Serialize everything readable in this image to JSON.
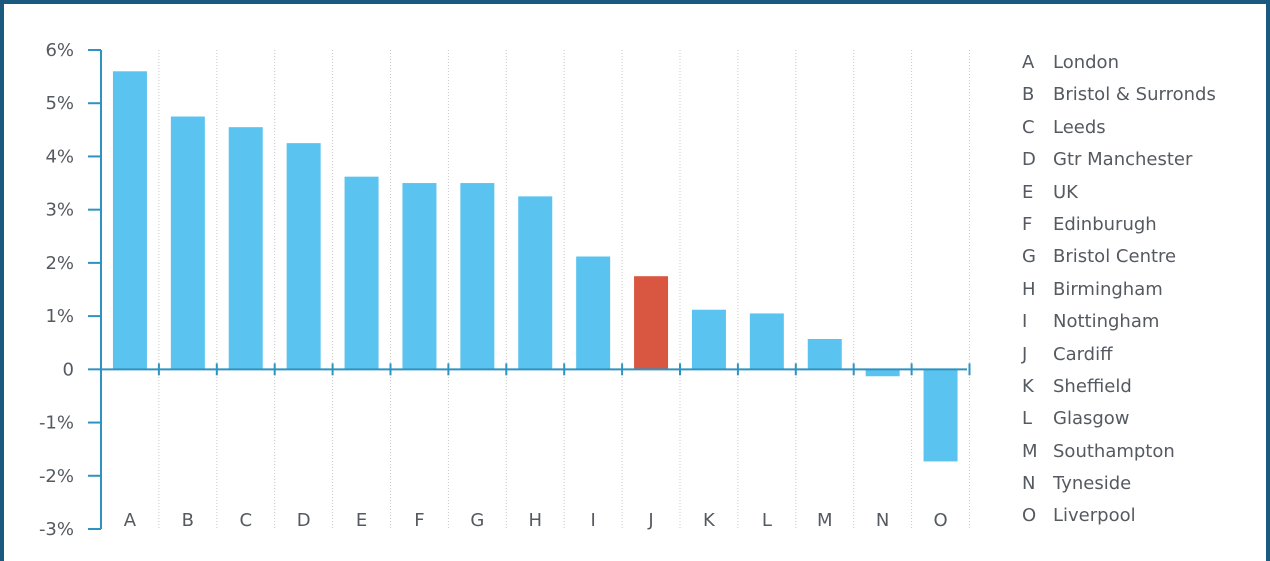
{
  "colors": {
    "frame": "#1b5a7e",
    "axis": "#2f93c1",
    "bar": "#5bc3ef",
    "highlight": "#d95741",
    "grid": "#c8c8c8",
    "text": "#555a60"
  },
  "chart_data": {
    "type": "bar",
    "categories": [
      "A",
      "B",
      "C",
      "D",
      "E",
      "F",
      "G",
      "H",
      "I",
      "J",
      "K",
      "L",
      "M",
      "N",
      "O"
    ],
    "values": [
      5.6,
      4.75,
      4.55,
      4.25,
      3.62,
      3.5,
      3.5,
      3.25,
      2.12,
      1.75,
      1.12,
      1.05,
      0.57,
      -0.13,
      -1.73
    ],
    "highlight_category": "J",
    "ylim": [
      -3,
      6
    ],
    "yticks": [
      6,
      5,
      4,
      3,
      2,
      1,
      0,
      -1,
      -2,
      -3
    ],
    "ytick_labels": [
      "6%",
      "5%",
      "4%",
      "3%",
      "2%",
      "1%",
      "0",
      "-1%",
      "-2%",
      "-3%"
    ],
    "grid": "vertical dotted",
    "legend_position": "right",
    "legend": [
      {
        "code": "A",
        "name": "London"
      },
      {
        "code": "B",
        "name": "Bristol & Surronds"
      },
      {
        "code": "C",
        "name": "Leeds"
      },
      {
        "code": "D",
        "name": "Gtr Manchester"
      },
      {
        "code": "E",
        "name": "UK"
      },
      {
        "code": "F",
        "name": "Edinburugh"
      },
      {
        "code": "G",
        "name": "Bristol Centre"
      },
      {
        "code": "H",
        "name": "Birmingham"
      },
      {
        "code": "I",
        "name": "Nottingham"
      },
      {
        "code": "J",
        "name": "Cardiff"
      },
      {
        "code": "K",
        "name": "Sheffield"
      },
      {
        "code": "L",
        "name": "Glasgow"
      },
      {
        "code": "M",
        "name": "Southampton"
      },
      {
        "code": "N",
        "name": "Tyneside"
      },
      {
        "code": "O",
        "name": "Liverpool"
      }
    ]
  }
}
